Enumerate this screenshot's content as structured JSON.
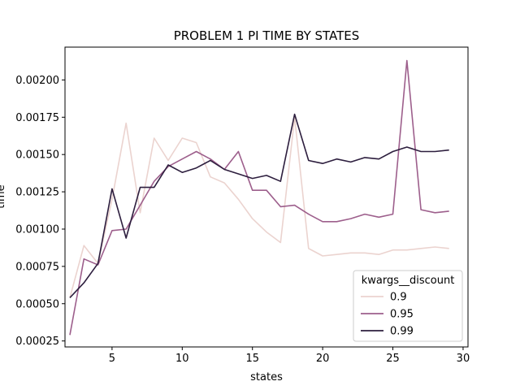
{
  "chart_data": {
    "type": "line",
    "title": "PROBLEM 1 PI TIME BY STATES",
    "xlabel": "states",
    "ylabel": "time",
    "xlim": [
      1.65,
      30.35
    ],
    "ylim": [
      0.00021,
      0.00222
    ],
    "xticks": [
      5,
      10,
      15,
      20,
      25,
      30
    ],
    "yticks": [
      0.00025,
      0.0005,
      0.00075,
      0.001,
      0.00125,
      0.0015,
      0.00175,
      0.002
    ],
    "ytick_labels": [
      "0.00025",
      "0.00050",
      "0.00075",
      "0.00100",
      "0.00125",
      "0.00150",
      "0.00175",
      "0.00200"
    ],
    "grid": false,
    "legend": {
      "title": "kwargs__discount",
      "position": "lower-right"
    },
    "x": [
      2,
      3,
      4,
      5,
      6,
      7,
      8,
      9,
      10,
      11,
      12,
      13,
      14,
      15,
      16,
      17,
      18,
      19,
      20,
      21,
      22,
      23,
      24,
      25,
      26,
      27,
      28,
      29
    ],
    "series": [
      {
        "name": "0.9",
        "color": "#ebd3cf",
        "values": [
          0.00054,
          0.00089,
          0.00077,
          0.0012,
          0.00171,
          0.00111,
          0.00161,
          0.00146,
          0.00161,
          0.00158,
          0.00135,
          0.00131,
          0.0012,
          0.00107,
          0.00098,
          0.00091,
          0.00175,
          0.00087,
          0.00082,
          0.00083,
          0.00084,
          0.00084,
          0.00083,
          0.00086,
          0.00086,
          0.00087,
          0.00088,
          0.00087
        ]
      },
      {
        "name": "0.95",
        "color": "#9d5f8c",
        "values": [
          0.00029,
          0.0008,
          0.00076,
          0.00099,
          0.001,
          0.00116,
          0.00132,
          0.00142,
          0.00147,
          0.00152,
          0.00147,
          0.0014,
          0.00152,
          0.00126,
          0.00126,
          0.00115,
          0.00116,
          0.0011,
          0.00105,
          0.00105,
          0.00107,
          0.0011,
          0.00108,
          0.0011,
          0.00213,
          0.00113,
          0.00111,
          0.00112
        ]
      },
      {
        "name": "0.99",
        "color": "#2d1e3e",
        "values": [
          0.00054,
          0.00064,
          0.00077,
          0.00127,
          0.00094,
          0.00128,
          0.00128,
          0.00143,
          0.00138,
          0.00141,
          0.00146,
          0.0014,
          0.00137,
          0.00134,
          0.00136,
          0.00132,
          0.00177,
          0.00146,
          0.00144,
          0.00147,
          0.00145,
          0.00148,
          0.00147,
          0.00152,
          0.00155,
          0.00152,
          0.00152,
          0.00153
        ]
      }
    ]
  }
}
